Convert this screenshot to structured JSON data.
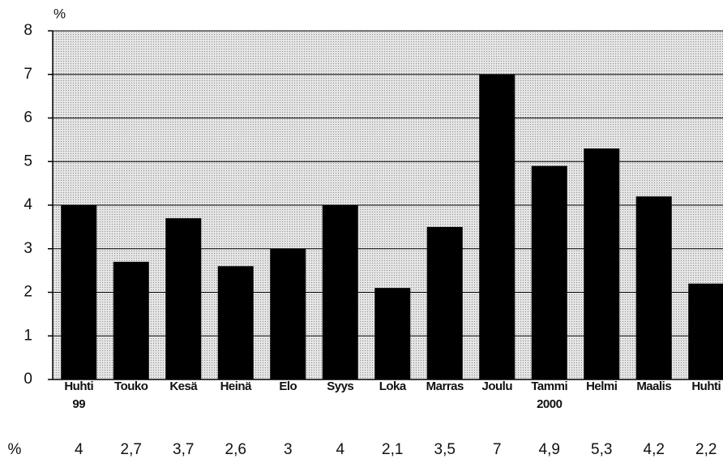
{
  "chart_data": {
    "type": "bar",
    "y_unit": "%",
    "value_row_label": "%",
    "categories": [
      "Huhti\n99",
      "Touko",
      "Kesä",
      "Heinä",
      "Elo",
      "Syys",
      "Loka",
      "Marras",
      "Joulu",
      "Tammi\n2000",
      "Helmi",
      "Maalis",
      "Huhti"
    ],
    "values": [
      4,
      2.7,
      3.7,
      2.6,
      3,
      4,
      2.1,
      3.5,
      7,
      4.9,
      5.3,
      4.2,
      2.2
    ],
    "value_labels": [
      "4",
      "2,7",
      "3,7",
      "2,6",
      "3",
      "4",
      "2,1",
      "3,5",
      "7",
      "4,9",
      "5,3",
      "4,2",
      "2,2"
    ],
    "color": "#000000",
    "ylim": [
      0,
      8
    ],
    "yticks": [
      0,
      1,
      2,
      3,
      4,
      5,
      6,
      7,
      8
    ],
    "grid": true
  }
}
